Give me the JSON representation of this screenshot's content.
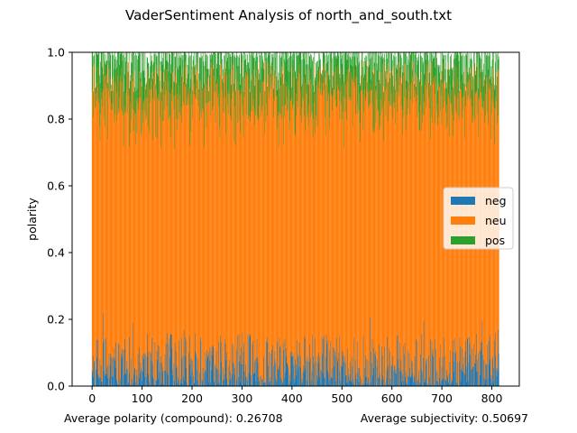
{
  "chart_data": {
    "type": "bar",
    "stacked": true,
    "title": "VaderSentiment Analysis of north_and_south.txt",
    "xlabel": "",
    "ylabel": "polarity",
    "xlim": [
      -40,
      855
    ],
    "ylim": [
      0,
      1.0
    ],
    "xticks": [
      0,
      100,
      200,
      300,
      400,
      500,
      600,
      700,
      800
    ],
    "yticks": [
      "0.0",
      "0.2",
      "0.4",
      "0.6",
      "0.8",
      "1.0"
    ],
    "n_bars": 815,
    "legend": {
      "position": "center-right",
      "entries": [
        {
          "name": "neg",
          "color": "#1f77b4"
        },
        {
          "name": "neu",
          "color": "#ff7f0e"
        },
        {
          "name": "pos",
          "color": "#2ca02c"
        }
      ]
    },
    "series": [
      {
        "name": "neg",
        "color": "#1f77b4",
        "mean": 0.055,
        "approx_max": 0.24
      },
      {
        "name": "neu",
        "color": "#ff7f0e",
        "mean": 0.82
      },
      {
        "name": "pos",
        "color": "#2ca02c",
        "mean": 0.125,
        "approx_max": 0.25
      }
    ],
    "seed": 12345
  },
  "footer": {
    "avg_polarity": "Average polarity (compound): 0.26708",
    "avg_subjectivity": "Average subjectivity: 0.50697"
  }
}
